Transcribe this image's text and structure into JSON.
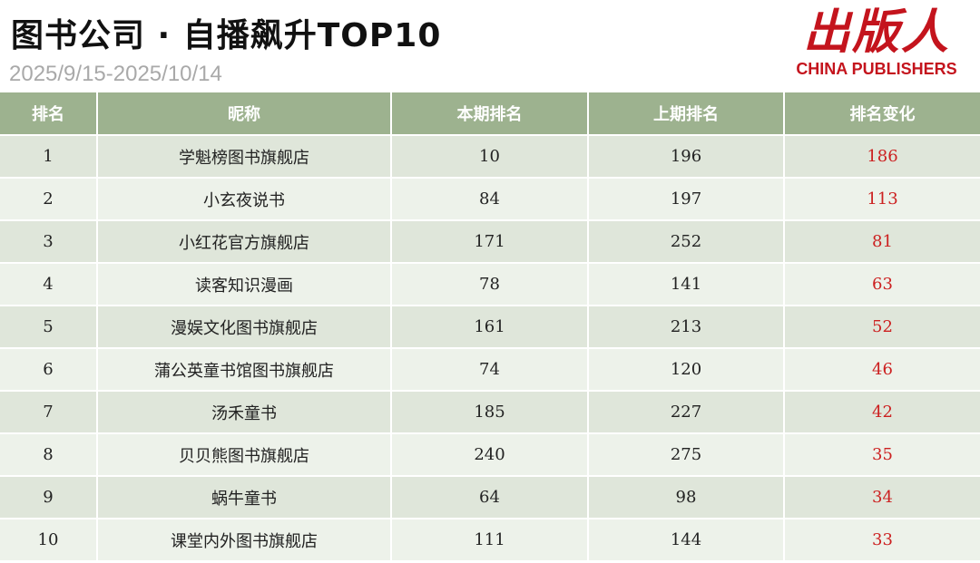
{
  "header": {
    "title": "图书公司 · 自播飙升TOP10",
    "date_range": "2025/9/15-2025/10/14",
    "logo_main": "出版人",
    "logo_sub": "CHINA PUBLISHERS"
  },
  "table": {
    "columns": [
      "排名",
      "昵称",
      "本期排名",
      "上期排名",
      "排名变化"
    ],
    "rows": [
      {
        "rank": "1",
        "name": "学魁榜图书旗舰店",
        "current": "10",
        "previous": "196",
        "change": "186"
      },
      {
        "rank": "2",
        "name": "小玄夜说书",
        "current": "84",
        "previous": "197",
        "change": "113"
      },
      {
        "rank": "3",
        "name": "小红花官方旗舰店",
        "current": "171",
        "previous": "252",
        "change": "81"
      },
      {
        "rank": "4",
        "name": "读客知识漫画",
        "current": "78",
        "previous": "141",
        "change": "63"
      },
      {
        "rank": "5",
        "name": "漫娱文化图书旗舰店",
        "current": "161",
        "previous": "213",
        "change": "52"
      },
      {
        "rank": "6",
        "name": "蒲公英童书馆图书旗舰店",
        "current": "74",
        "previous": "120",
        "change": "46"
      },
      {
        "rank": "7",
        "name": "汤禾童书",
        "current": "185",
        "previous": "227",
        "change": "42"
      },
      {
        "rank": "8",
        "name": "贝贝熊图书旗舰店",
        "current": "240",
        "previous": "275",
        "change": "35"
      },
      {
        "rank": "9",
        "name": "蜗牛童书",
        "current": "64",
        "previous": "98",
        "change": "34"
      },
      {
        "rank": "10",
        "name": "课堂内外图书旗舰店",
        "current": "111",
        "previous": "144",
        "change": "33"
      }
    ]
  },
  "colors": {
    "header_bg": "#9db28f",
    "row_odd": "#dfe6da",
    "row_even": "#edf2ea",
    "change_text": "#cc2020",
    "logo": "#c4141d"
  }
}
